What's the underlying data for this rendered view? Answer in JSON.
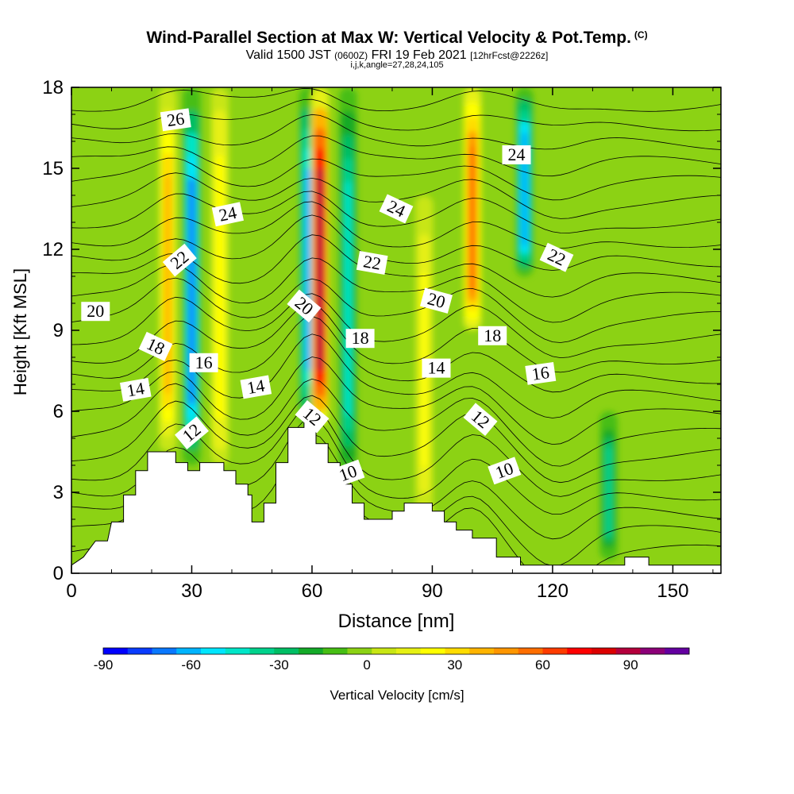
{
  "title": "Wind-Parallel Section at Max W: Vertical Velocity & Pot.Temp.",
  "title_mark": "(C)",
  "subtitle_valid": "Valid 1500 JST",
  "subtitle_utc": "(0600Z)",
  "subtitle_date": "FRI 19 Feb 2021",
  "subtitle_fcst": "[12hrFcst@2226z]",
  "subtitle_indices": "i,j,k,angle=27,28,24,105",
  "chart_data": {
    "type": "heatmap",
    "xlabel": "Distance [nm]",
    "ylabel": "Height [Kft MSL]",
    "xlim": [
      0,
      162
    ],
    "ylim": [
      0,
      18
    ],
    "x_ticks": [
      "0",
      "30",
      "60",
      "90",
      "120",
      "150"
    ],
    "y_ticks": [
      "0",
      "3",
      "6",
      "9",
      "12",
      "15",
      "18"
    ],
    "colorbar": {
      "label": "Vertical Velocity [cm/s]",
      "range": [
        -90,
        110
      ],
      "ticks": [
        "-90",
        "-60",
        "-30",
        "0",
        "30",
        "60",
        "90"
      ],
      "colors": [
        "#0000ff",
        "#0a3cff",
        "#0a78ff",
        "#00b4ff",
        "#00e6ff",
        "#00e6c8",
        "#00d28c",
        "#00be64",
        "#14aa28",
        "#46be14",
        "#8cd214",
        "#c8e614",
        "#e6f014",
        "#ffff00",
        "#ffdc00",
        "#ffb400",
        "#ff9600",
        "#ff6e00",
        "#ff3c00",
        "#ff0000",
        "#dc0000",
        "#b4003c",
        "#8c0078",
        "#6400a0"
      ]
    },
    "vertical_velocity_features": [
      {
        "x": 24,
        "bottom": 4.5,
        "top": 18,
        "peak": 40,
        "kind": "updraft"
      },
      {
        "x": 30,
        "bottom": 4,
        "top": 18,
        "peak": -70,
        "kind": "downdraft"
      },
      {
        "x": 37,
        "bottom": 4,
        "top": 18,
        "peak": 25,
        "kind": "updraft"
      },
      {
        "x": 59,
        "bottom": 5.5,
        "top": 18,
        "peak": -60,
        "kind": "downdraft"
      },
      {
        "x": 62,
        "bottom": 5.5,
        "top": 18,
        "peak": 90,
        "kind": "updraft"
      },
      {
        "x": 69,
        "bottom": 3.5,
        "top": 18,
        "peak": -45,
        "kind": "downdraft"
      },
      {
        "x": 88,
        "bottom": 2,
        "top": 14,
        "peak": 20,
        "kind": "updraft"
      },
      {
        "x": 100,
        "bottom": 9,
        "top": 18,
        "peak": 55,
        "kind": "updraft"
      },
      {
        "x": 113,
        "bottom": 11,
        "top": 18,
        "peak": -65,
        "kind": "downdraft"
      },
      {
        "x": 134,
        "bottom": 0.5,
        "top": 6,
        "peak": -35,
        "kind": "downdraft"
      }
    ],
    "terrain": [
      [
        0,
        0.3
      ],
      [
        3,
        0.6
      ],
      [
        6,
        1.2
      ],
      [
        9,
        1.2
      ],
      [
        10,
        1.9
      ],
      [
        13,
        1.9
      ],
      [
        13,
        2.9
      ],
      [
        16,
        2.9
      ],
      [
        16,
        3.8
      ],
      [
        19,
        3.8
      ],
      [
        19,
        4.5
      ],
      [
        26,
        4.5
      ],
      [
        26,
        4.1
      ],
      [
        29,
        4.1
      ],
      [
        29,
        3.8
      ],
      [
        32,
        3.8
      ],
      [
        32,
        4.1
      ],
      [
        38,
        4.1
      ],
      [
        38,
        3.8
      ],
      [
        41,
        3.8
      ],
      [
        41,
        3.3
      ],
      [
        44,
        3.3
      ],
      [
        44,
        2.9
      ],
      [
        45,
        2.9
      ],
      [
        45,
        1.9
      ],
      [
        48,
        1.9
      ],
      [
        48,
        2.6
      ],
      [
        51,
        2.6
      ],
      [
        51,
        4.1
      ],
      [
        54,
        4.1
      ],
      [
        54,
        5.4
      ],
      [
        58,
        5.4
      ],
      [
        58,
        5.7
      ],
      [
        61,
        5.7
      ],
      [
        61,
        4.8
      ],
      [
        64,
        4.8
      ],
      [
        64,
        4.1
      ],
      [
        67,
        4.1
      ],
      [
        67,
        3.3
      ],
      [
        70,
        3.3
      ],
      [
        70,
        2.6
      ],
      [
        73,
        2.6
      ],
      [
        73,
        2.0
      ],
      [
        80,
        2.0
      ],
      [
        80,
        2.3
      ],
      [
        83,
        2.3
      ],
      [
        83,
        2.6
      ],
      [
        90,
        2.6
      ],
      [
        90,
        2.3
      ],
      [
        93,
        2.3
      ],
      [
        93,
        1.9
      ],
      [
        96,
        1.9
      ],
      [
        96,
        1.6
      ],
      [
        100,
        1.6
      ],
      [
        100,
        1.3
      ],
      [
        106,
        1.3
      ],
      [
        106,
        0.6
      ],
      [
        112,
        0.6
      ],
      [
        112,
        0.3
      ],
      [
        138,
        0.3
      ],
      [
        138,
        0.6
      ],
      [
        144,
        0.6
      ],
      [
        144,
        0.3
      ],
      [
        162,
        0.3
      ]
    ],
    "theta_contour_labels": [
      {
        "text": "26",
        "x": 26,
        "y": 16.8,
        "angle": -8
      },
      {
        "text": "24",
        "x": 39,
        "y": 13.3,
        "angle": -12
      },
      {
        "text": "22",
        "x": 27,
        "y": 11.6,
        "angle": -40
      },
      {
        "text": "20",
        "x": 6,
        "y": 9.7,
        "angle": 0
      },
      {
        "text": "18",
        "x": 21,
        "y": 8.4,
        "angle": 25
      },
      {
        "text": "16",
        "x": 33,
        "y": 7.8,
        "angle": 0
      },
      {
        "text": "14",
        "x": 16,
        "y": 6.8,
        "angle": -10
      },
      {
        "text": "14",
        "x": 46,
        "y": 6.9,
        "angle": -10
      },
      {
        "text": "12",
        "x": 30,
        "y": 5.2,
        "angle": -40
      },
      {
        "text": "24",
        "x": 81,
        "y": 13.5,
        "angle": 25
      },
      {
        "text": "22",
        "x": 75,
        "y": 11.5,
        "angle": 10
      },
      {
        "text": "20",
        "x": 58,
        "y": 9.9,
        "angle": 40
      },
      {
        "text": "18",
        "x": 72,
        "y": 8.7,
        "angle": 0
      },
      {
        "text": "12",
        "x": 60,
        "y": 5.8,
        "angle": 40
      },
      {
        "text": "10",
        "x": 69,
        "y": 3.7,
        "angle": -20
      },
      {
        "text": "24",
        "x": 111,
        "y": 15.5,
        "angle": 0
      },
      {
        "text": "22",
        "x": 121,
        "y": 11.7,
        "angle": 25
      },
      {
        "text": "20",
        "x": 91,
        "y": 10.1,
        "angle": 15
      },
      {
        "text": "18",
        "x": 105,
        "y": 8.8,
        "angle": 0
      },
      {
        "text": "14",
        "x": 91,
        "y": 7.6,
        "angle": 0
      },
      {
        "text": "16",
        "x": 117,
        "y": 7.4,
        "angle": -8
      },
      {
        "text": "12",
        "x": 102,
        "y": 5.7,
        "angle": 40
      },
      {
        "text": "10",
        "x": 108,
        "y": 3.8,
        "angle": -20
      }
    ]
  }
}
